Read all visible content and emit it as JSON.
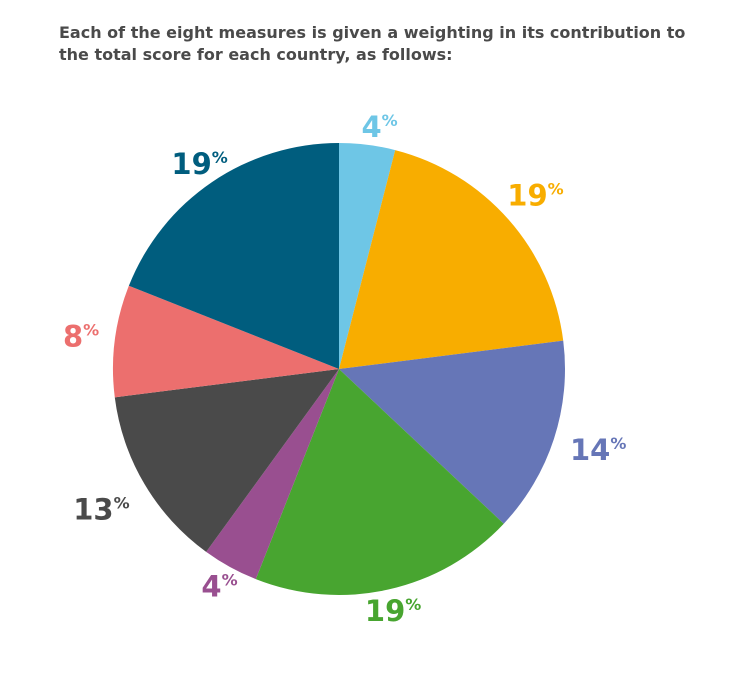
{
  "intro": {
    "text": "Each of the eight measures is given a weighting in its contribution to the total score for each country, as follows:"
  },
  "chart_data": {
    "type": "pie",
    "title": "",
    "start": "12 o'clock",
    "direction": "clockwise",
    "slices": [
      {
        "value": 4,
        "label": "4",
        "unit": "%",
        "color": "#6ec6e6"
      },
      {
        "value": 19,
        "label": "19",
        "unit": "%",
        "color": "#f8ad00"
      },
      {
        "value": 14,
        "label": "14",
        "unit": "%",
        "color": "#6676b7"
      },
      {
        "value": 19,
        "label": "19",
        "unit": "%",
        "color": "#48a530"
      },
      {
        "value": 4,
        "label": "4",
        "unit": "%",
        "color": "#994f90"
      },
      {
        "value": 13,
        "label": "13",
        "unit": "%",
        "color": "#4a4a4a"
      },
      {
        "value": 8,
        "label": "8",
        "unit": "%",
        "color": "#ec6f6e"
      },
      {
        "value": 19,
        "label": "19",
        "unit": "%",
        "color": "#005d7e"
      }
    ]
  }
}
